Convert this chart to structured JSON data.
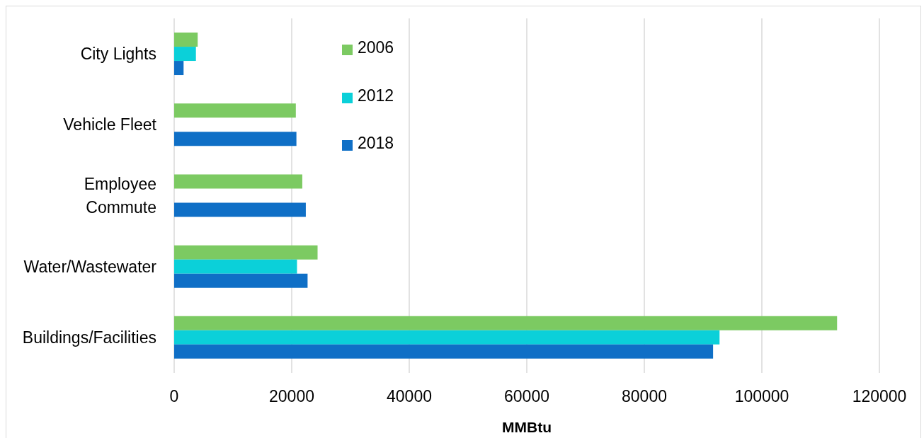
{
  "chart_data": {
    "type": "bar",
    "orientation": "horizontal",
    "categories": [
      "City Lights",
      "Vehicle Fleet",
      "Employee Commute",
      "Water/Wastewater",
      "Buildings/Facilities"
    ],
    "series": [
      {
        "name": "2006",
        "color": "#7cca62",
        "values": [
          4000,
          20700,
          21800,
          24400,
          112800
        ]
      },
      {
        "name": "2012",
        "color": "#0bd0d9",
        "values": [
          3700,
          null,
          null,
          20900,
          92800
        ]
      },
      {
        "name": "2018",
        "color": "#0f6fc6",
        "values": [
          1600,
          20800,
          22400,
          22700,
          91700
        ]
      }
    ],
    "xlabel": "MMBtu",
    "xlim": [
      0,
      120000
    ],
    "xticks": [
      0,
      20000,
      40000,
      60000,
      80000,
      100000,
      120000
    ],
    "grid": "x",
    "legend": "top left"
  }
}
